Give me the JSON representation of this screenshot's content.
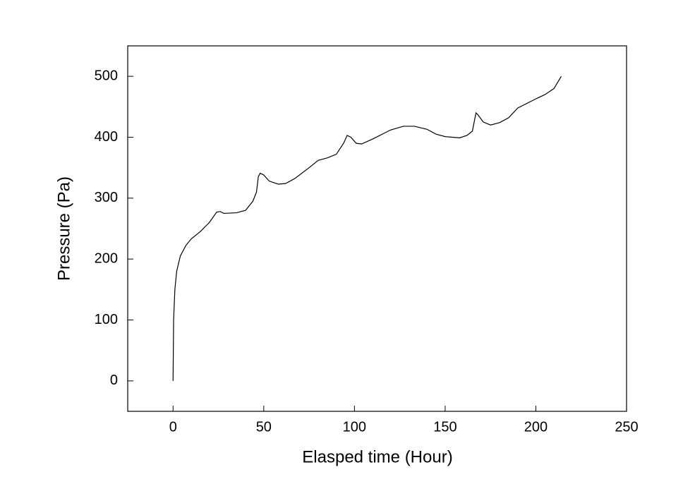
{
  "chart_data": {
    "type": "line",
    "x_label": "Elasped time (Hour)",
    "y_label": "Pressure (Pa)",
    "xlim": [
      -25,
      250
    ],
    "xticks": [
      0,
      50,
      100,
      150,
      200,
      250
    ],
    "ylim": [
      -50,
      550
    ],
    "yticks": [
      0,
      100,
      200,
      300,
      400,
      500
    ],
    "x": [
      0,
      0.3,
      1,
      2,
      4,
      7,
      10,
      15,
      20,
      24,
      26,
      28,
      35,
      40,
      44,
      46,
      47,
      48,
      50,
      53,
      58,
      62,
      67,
      75,
      80,
      85,
      90,
      94,
      96,
      98,
      101,
      104,
      110,
      120,
      127,
      133,
      140,
      145,
      150,
      158,
      162,
      165,
      167,
      168,
      171,
      175,
      180,
      185,
      190,
      200,
      205,
      210,
      214
    ],
    "series": [
      {
        "color": "#000000",
        "values": [
          0,
          100,
          150,
          180,
          205,
          222,
          233,
          245,
          260,
          277,
          278,
          275,
          276,
          280,
          295,
          310,
          335,
          341,
          338,
          328,
          323,
          324,
          332,
          350,
          362,
          366,
          372,
          390,
          403,
          400,
          390,
          389,
          397,
          412,
          418,
          418,
          413,
          405,
          401,
          399,
          403,
          410,
          440,
          437,
          425,
          420,
          424,
          432,
          448,
          463,
          470,
          480,
          500
        ]
      }
    ]
  }
}
